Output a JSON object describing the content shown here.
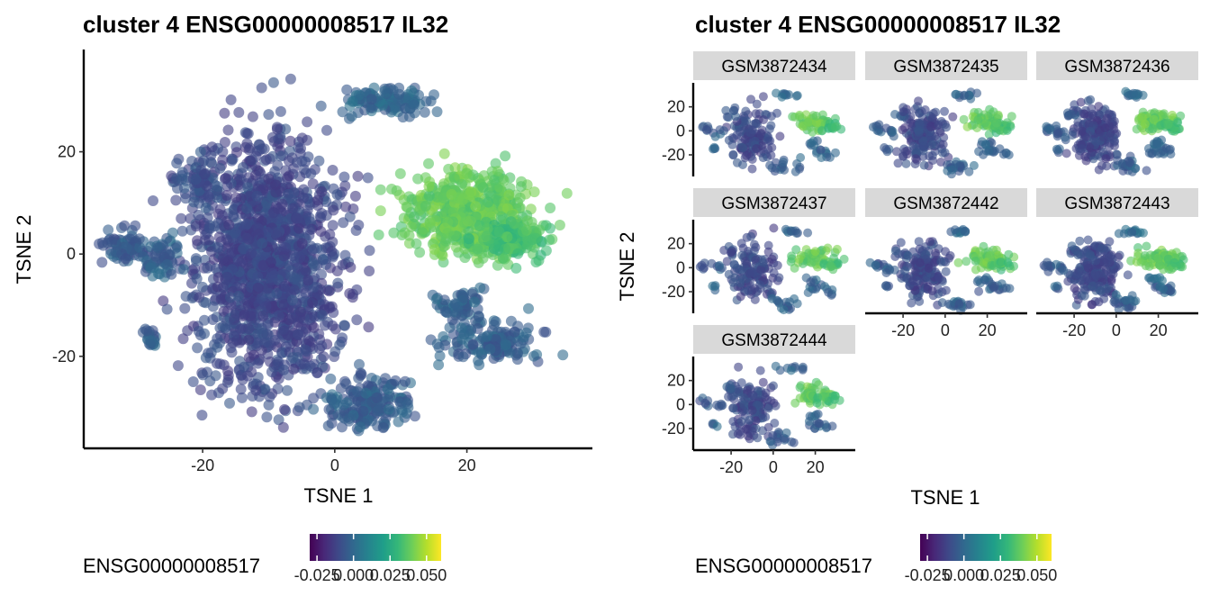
{
  "chart_data": [
    {
      "type": "scatter",
      "title": "cluster 4 ENSG00000008517 IL32",
      "xlabel": "TSNE 1",
      "ylabel": "TSNE 2",
      "xlim": [
        -38,
        39
      ],
      "ylim": [
        -38,
        40
      ],
      "xticks": [
        -20,
        0,
        20
      ],
      "yticks": [
        -20,
        0,
        20
      ],
      "color_scale": "viridis",
      "clusters": [
        {
          "cx": -10,
          "cy": -2,
          "rx": 10,
          "ry": 22,
          "n": 1400,
          "c": 0.22
        },
        {
          "cx": -21,
          "cy": 14,
          "rx": 3,
          "ry": 4,
          "n": 70,
          "c": 0.25
        },
        {
          "cx": -32,
          "cy": 2,
          "rx": 3,
          "ry": 3,
          "n": 70,
          "c": 0.28
        },
        {
          "cx": -26,
          "cy": -1,
          "rx": 2.5,
          "ry": 3.5,
          "n": 60,
          "c": 0.3
        },
        {
          "cx": -28,
          "cy": -16,
          "rx": 1.2,
          "ry": 2,
          "n": 20,
          "c": 0.3
        },
        {
          "cx": 5,
          "cy": -29,
          "rx": 6,
          "ry": 5,
          "n": 180,
          "c": 0.3
        },
        {
          "cx": 8,
          "cy": 30,
          "rx": 6,
          "ry": 2.5,
          "n": 110,
          "c": 0.33
        },
        {
          "cx": 20,
          "cy": 8,
          "rx": 9,
          "ry": 8,
          "n": 500,
          "c": 0.76
        },
        {
          "cx": 27,
          "cy": 3,
          "rx": 5,
          "ry": 4,
          "n": 140,
          "c": 0.7
        },
        {
          "cx": 23,
          "cy": -17,
          "rx": 7,
          "ry": 4,
          "n": 140,
          "c": 0.3
        },
        {
          "cx": 19,
          "cy": -10,
          "rx": 3,
          "ry": 3,
          "n": 60,
          "c": 0.32
        }
      ]
    },
    {
      "type": "scatter",
      "title": "cluster 4 ENSG00000008517 IL32",
      "xlabel": "TSNE 1",
      "ylabel": "TSNE 2",
      "xlim": [
        -38,
        39
      ],
      "ylim": [
        -38,
        40
      ],
      "xticks": [
        -20,
        0,
        20
      ],
      "yticks": [
        -20,
        0,
        20
      ],
      "facets": [
        "GSM3872434",
        "GSM3872435",
        "GSM3872436",
        "GSM3872437",
        "GSM3872442",
        "GSM3872443",
        "GSM3872444"
      ],
      "color_scale": "viridis"
    }
  ],
  "legend": {
    "title": "ENSG00000008517",
    "tick_labels": [
      "-0.025",
      "0.000",
      "0.025",
      "0.050"
    ],
    "tick_values": [
      -0.025,
      0.0,
      0.025,
      0.05
    ],
    "range": [
      -0.03,
      0.06
    ],
    "colors": [
      "#440154",
      "#482878",
      "#3e4989",
      "#31688e",
      "#26828e",
      "#1f9e89",
      "#35b779",
      "#6ece58",
      "#b5de2b",
      "#fde725"
    ]
  }
}
